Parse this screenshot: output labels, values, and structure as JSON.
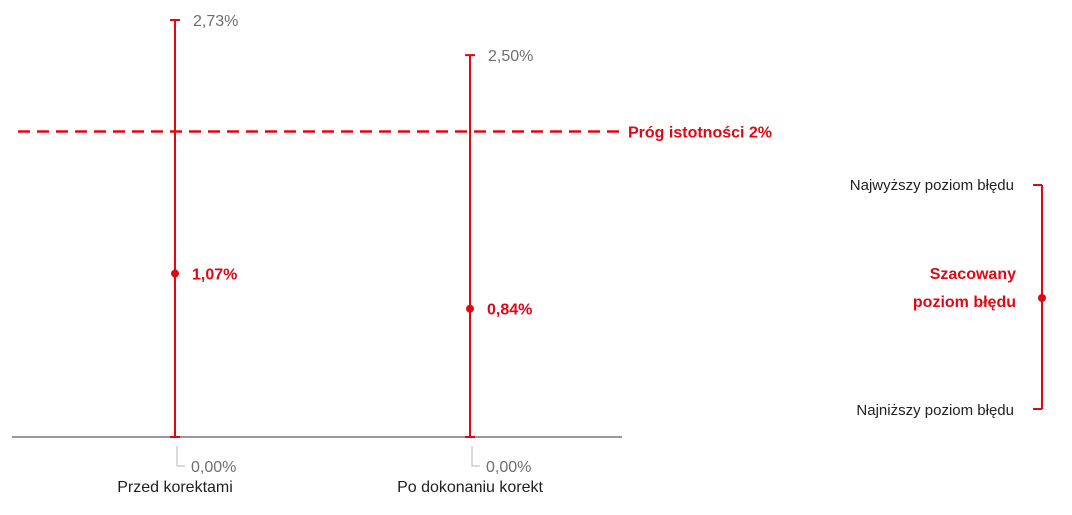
{
  "chart_data": {
    "type": "error_bar",
    "categories": [
      "Przed korektami",
      "Po dokonaniu korekt"
    ],
    "series": [
      {
        "values": [
          1.07,
          0.84
        ],
        "value_labels": [
          "1,07%",
          "0,84%"
        ],
        "upper": [
          2.73,
          2.5
        ],
        "upper_labels": [
          "2,73%",
          "2,50%"
        ],
        "lower": [
          0.0,
          0.0
        ],
        "lower_labels": [
          "0,00%",
          "0,00%"
        ]
      }
    ],
    "threshold": {
      "value": 2.0,
      "label": "Próg istotności 2%"
    },
    "ylim": [
      0,
      2.73
    ],
    "colors": {
      "series": "#e30613",
      "axis": "#999999",
      "label": "#6e6e6e"
    },
    "legend": {
      "position": "right",
      "upper_label": "Najwyższy poziom błędu",
      "estimate_label_line1": "Szacowany",
      "estimate_label_line2": "poziom błędu",
      "lower_label": "Najniższy poziom błędu"
    }
  }
}
